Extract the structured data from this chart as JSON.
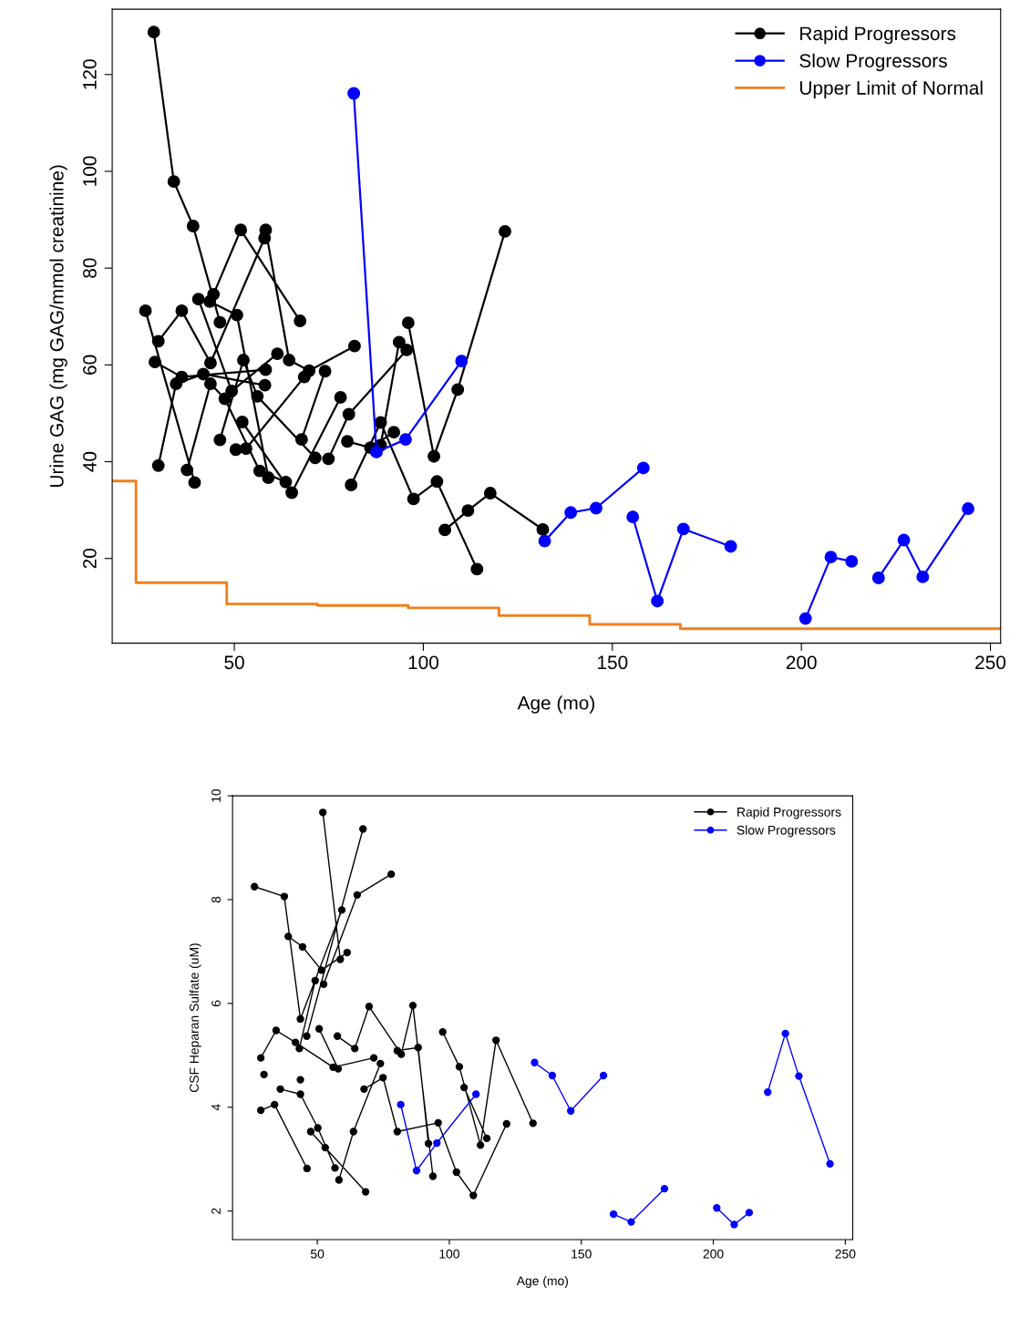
{
  "chart_data": [
    {
      "type": "line",
      "xlabel": "Age (mo)",
      "ylabel": "Urine GAG (mg GAG/mmol creatinine)",
      "xlim": [
        17.7,
        252.7
      ],
      "ylim": [
        2.5,
        133.5
      ],
      "xticks": [
        50,
        100,
        150,
        200,
        250
      ],
      "yticks": [
        20,
        40,
        60,
        80,
        100,
        120
      ],
      "grid": false,
      "legend": "top right",
      "marker": "circle",
      "line_style": "solid",
      "series": [
        {
          "name": "Rapid Progressors",
          "color": "#000000",
          "x": [
            28.7,
            34.0,
            39.1,
            46.2,
            null,
            43.5,
            50.7,
            59.0,
            null,
            44.5,
            51.7,
            67.4,
            null,
            26.5,
            39.5,
            null,
            29.9,
            36.1,
            43.7,
            58.0,
            null,
            58.3,
            64.5,
            69.8,
            81.8,
            null,
            29.9,
            34.6,
            41.8,
            58.1,
            null,
            29.0,
            36.1,
            58.3,
            null,
            37.5,
            43.7,
            47.5,
            56.7,
            63.6,
            null,
            46.2,
            52.4,
            56.1,
            71.4,
            null,
            40.5,
            49.3,
            61.4,
            null,
            50.4,
            53.1,
            68.5,
            null,
            52.1,
            65.2,
            78.1,
            null,
            67.8,
            74.0,
            null,
            74.9,
            80.3,
            95.6,
            null,
            79.9,
            86.0,
            92.2,
            null,
            80.9,
            88.7,
            97.4,
            103.6,
            114.2,
            null,
            88.7,
            93.6,
            null,
            96.0,
            102.8,
            109.1,
            121.6,
            null,
            105.7,
            111.8,
            117.7,
            131.6
          ],
          "values": [
            128.8,
            97.9,
            88.7,
            68.8,
            null,
            73.1,
            70.3,
            36.7,
            null,
            74.6,
            87.9,
            69.1,
            null,
            71.2,
            35.7,
            null,
            64.9,
            71.2,
            60.4,
            86.2,
            null,
            87.9,
            61.0,
            58.8,
            63.9,
            null,
            39.2,
            56.1,
            58.1,
            55.8,
            null,
            60.6,
            57.5,
            59.0,
            null,
            38.3,
            56.1,
            53.0,
            38.1,
            35.8,
            null,
            44.5,
            61.0,
            53.5,
            40.8,
            null,
            73.6,
            54.6,
            62.3,
            null,
            42.5,
            42.7,
            57.5,
            null,
            48.2,
            33.6,
            53.3,
            null,
            44.6,
            58.7,
            null,
            40.6,
            49.8,
            63.1,
            null,
            44.2,
            42.9,
            46.1,
            null,
            35.2,
            48.1,
            32.3,
            35.9,
            17.8,
            null,
            43.4,
            64.7,
            null,
            68.7,
            41.1,
            54.9,
            87.6,
            null,
            25.9,
            29.9,
            33.5,
            26.0
          ]
        },
        {
          "name": "Slow Progressors",
          "color": "#0000ff",
          "x": [
            81.6,
            87.6,
            95.3,
            110.1,
            null,
            132.1,
            139.0,
            145.7,
            158.2,
            null,
            155.4,
            161.9,
            168.8,
            181.3,
            null,
            201.1,
            207.8,
            213.3,
            null,
            220.4,
            227.1,
            232.1,
            244.1
          ],
          "values": [
            116.1,
            42.0,
            44.6,
            60.8,
            null,
            23.6,
            29.5,
            30.4,
            38.7,
            null,
            28.6,
            11.2,
            26.1,
            22.5,
            null,
            7.6,
            20.3,
            19.4,
            null,
            16.0,
            23.8,
            16.2,
            30.3
          ]
        },
        {
          "name": "Upper Limit of Normal",
          "type": "step",
          "marker": "none",
          "color": "#f07f1e",
          "x": [
            17.7,
            24,
            48,
            72,
            96,
            120,
            144,
            168,
            252.7
          ],
          "values": [
            36,
            15,
            10.6,
            10.3,
            9.8,
            8.2,
            6.4,
            5.5,
            5.5
          ]
        }
      ]
    },
    {
      "type": "line",
      "xlabel": "Age (mo)",
      "ylabel": "CSF Heparan Sulfate (uM)",
      "xlim": [
        17.9,
        252.8
      ],
      "ylim": [
        1.45,
        10.0
      ],
      "xticks": [
        50,
        100,
        150,
        200,
        250
      ],
      "yticks": [
        2,
        4,
        6,
        8,
        10
      ],
      "grid": false,
      "legend": "top right",
      "marker": "circle",
      "line_style": "solid",
      "series": [
        {
          "name": "Rapid Progressors",
          "color": "#000000",
          "x": [
            26.2,
            37.5,
            43.6,
            59.3,
            null,
            39.0,
            44.4,
            51.6,
            61.3,
            null,
            52.1,
            58.7,
            null,
            46.0,
            67.3,
            null,
            52.4,
            65.1,
            78.0,
            null,
            43.2,
            49.2,
            null,
            28.6,
            34.4,
            41.7,
            56.0,
            71.4,
            null,
            50.7,
            57.9,
            null,
            57.6,
            64.2,
            69.6,
            81.8,
            86.2,
            93.8,
            null,
            80.3,
            88.2,
            92.1,
            null,
            67.7,
            74.9,
            80.3,
            95.8,
            102.7,
            109.1,
            121.7,
            null,
            97.5,
            103.8,
            111.8,
            117.7,
            131.7,
            null,
            105.6,
            114.2,
            null,
            29.8,
            null,
            43.6,
            null,
            36.0,
            43.6,
            50.2,
            56.7,
            null,
            58.2,
            63.7,
            73.9,
            null,
            28.6,
            33.8,
            46.1,
            null,
            47.5,
            53.0,
            68.3
          ],
          "values": [
            8.25,
            8.06,
            5.7,
            7.8,
            null,
            7.29,
            7.09,
            6.64,
            6.98,
            null,
            9.68,
            6.85,
            null,
            5.37,
            9.36,
            null,
            6.37,
            8.09,
            8.49,
            null,
            5.13,
            6.44,
            null,
            4.95,
            5.48,
            5.25,
            4.77,
            4.95,
            null,
            5.51,
            4.74,
            null,
            5.37,
            5.13,
            5.94,
            5.02,
            5.96,
            2.67,
            null,
            5.09,
            5.15,
            3.3,
            null,
            4.35,
            4.57,
            3.53,
            3.7,
            2.75,
            2.3,
            3.68,
            null,
            5.45,
            4.78,
            3.27,
            5.29,
            3.69,
            null,
            4.38,
            3.4,
            null,
            4.63,
            null,
            4.53,
            null,
            4.35,
            4.25,
            3.6,
            2.83,
            null,
            2.6,
            3.53,
            4.84,
            null,
            3.94,
            4.05,
            2.82,
            null,
            3.53,
            3.22,
            2.37
          ]
        },
        {
          "name": "Slow Progressors",
          "color": "#0000ff",
          "x": [
            81.6,
            87.6,
            95.3,
            110.1,
            null,
            132.3,
            139.0,
            146.0,
            158.4,
            null,
            162.2,
            168.9,
            181.5,
            null,
            201.3,
            207.9,
            213.6,
            null,
            220.6,
            227.3,
            232.4,
            244.2
          ],
          "values": [
            4.05,
            2.78,
            3.31,
            4.25,
            null,
            4.86,
            4.61,
            3.93,
            4.61,
            null,
            1.94,
            1.79,
            2.43,
            null,
            2.06,
            1.74,
            1.97,
            null,
            4.29,
            5.42,
            4.6,
            2.91
          ]
        }
      ]
    }
  ]
}
